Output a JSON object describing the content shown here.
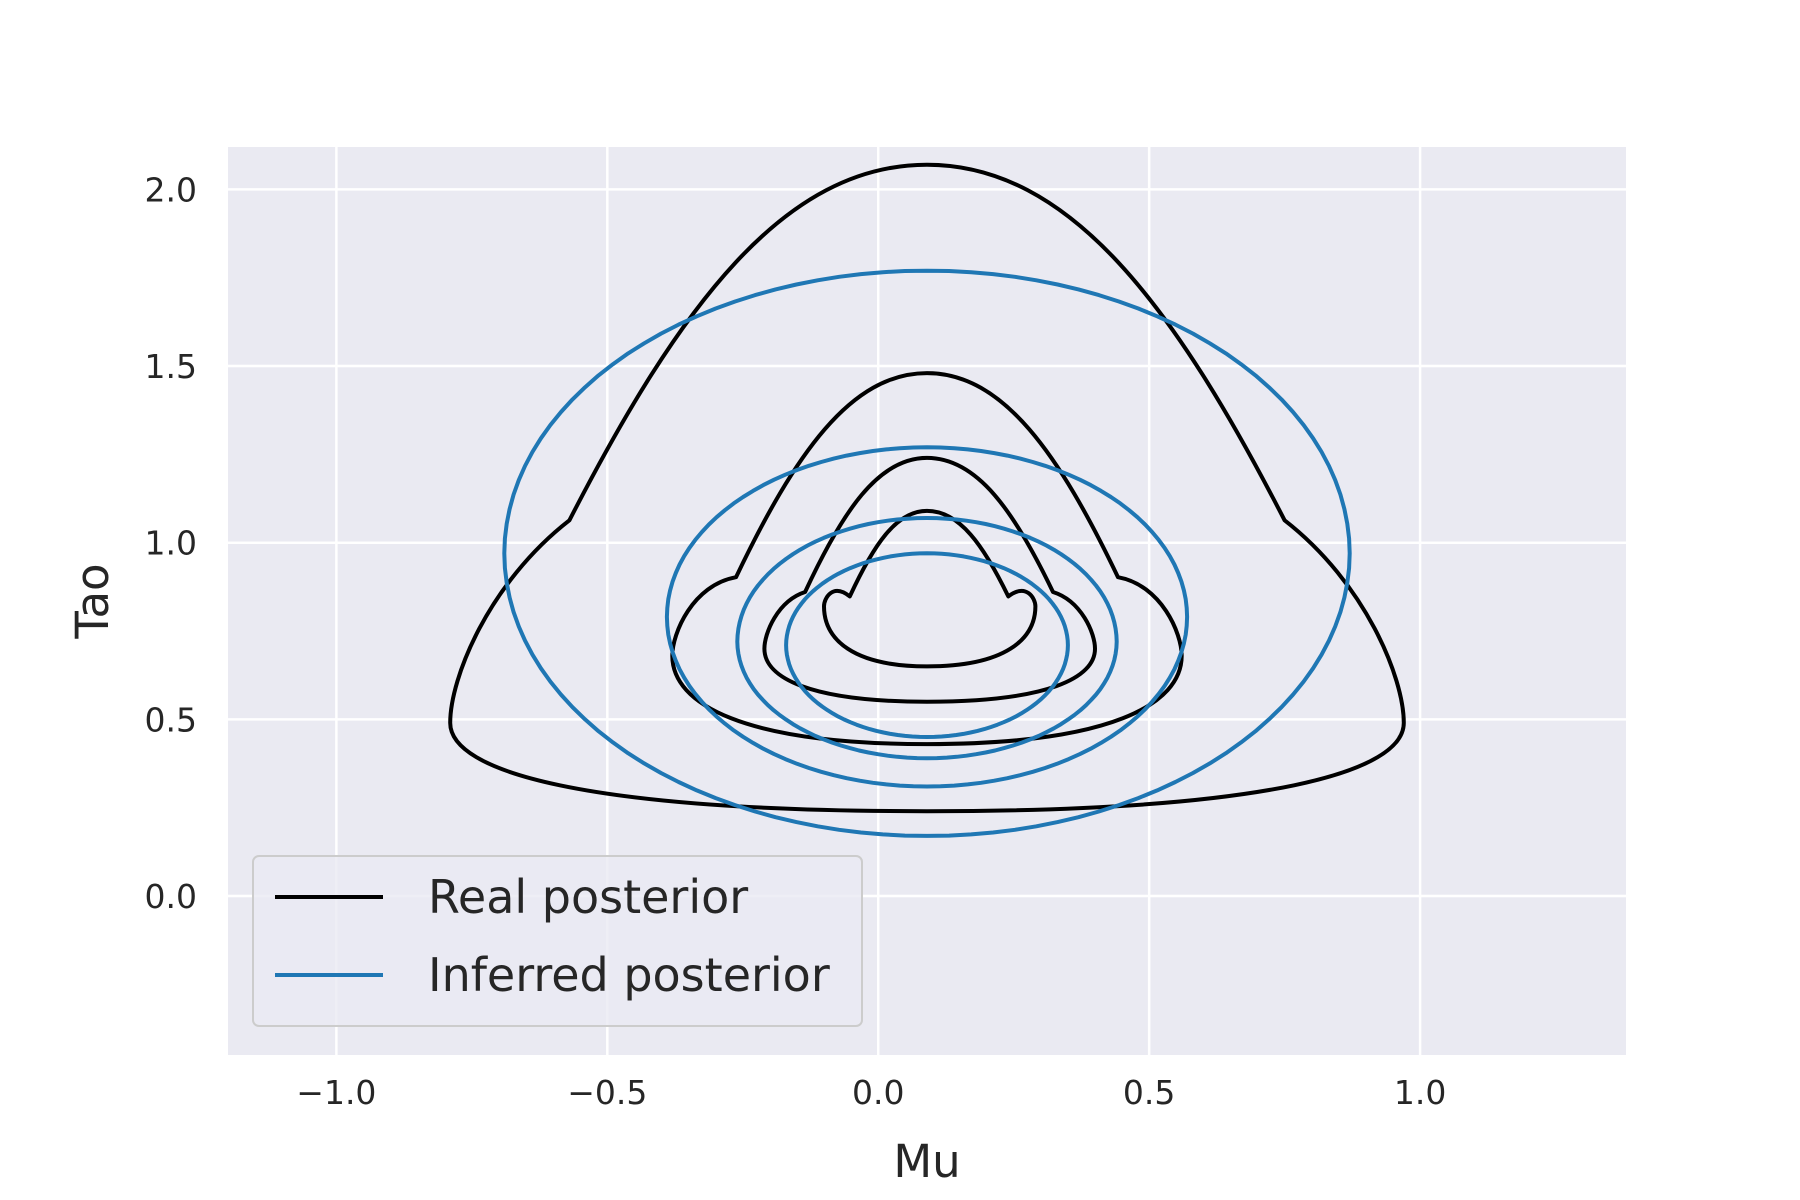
{
  "chart_data": {
    "type": "line",
    "subtype": "contour",
    "title": "",
    "xlabel": "Mu",
    "ylabel": "Tao",
    "xlim": [
      -1.2,
      1.38
    ],
    "ylim": [
      -0.45,
      2.12
    ],
    "xticks": [
      -1.0,
      -0.5,
      0.0,
      0.5,
      1.0
    ],
    "xtick_labels": [
      "−1.0",
      "−0.5",
      "0.0",
      "0.5",
      "1.0"
    ],
    "yticks": [
      0.0,
      0.5,
      1.0,
      1.5,
      2.0
    ],
    "ytick_labels": [
      "0.0",
      "0.5",
      "1.0",
      "1.5",
      "2.0"
    ],
    "grid": true,
    "background": "#eaeaf2",
    "grid_color": "#ffffff",
    "legend_position": "bottom-left",
    "series": [
      {
        "name": "Real posterior",
        "color": "#000000",
        "contours": [
          {
            "center_x": 0.09,
            "top": 2.07,
            "bottom": 0.24,
            "x_left": -0.79,
            "x_right": 0.97,
            "y_widest": 0.49
          },
          {
            "center_x": 0.09,
            "top": 1.48,
            "bottom": 0.43,
            "x_left": -0.38,
            "x_right": 0.56,
            "y_widest": 0.68
          },
          {
            "center_x": 0.09,
            "top": 1.24,
            "bottom": 0.55,
            "x_left": -0.21,
            "x_right": 0.4,
            "y_widest": 0.7
          },
          {
            "center_x": 0.09,
            "top": 1.09,
            "bottom": 0.65,
            "x_left": -0.1,
            "x_right": 0.29,
            "y_widest": 0.82
          }
        ]
      },
      {
        "name": "Inferred posterior",
        "color": "#1f77b4",
        "contours": [
          {
            "center_x": 0.09,
            "center_y": 0.97,
            "rx": 0.78,
            "ry_top": 0.8,
            "ry_bottom": 0.8,
            "widest_y": 0.68
          },
          {
            "center_x": 0.09,
            "center_y": 0.79,
            "rx": 0.48,
            "ry_top": 0.48,
            "ry_bottom": 0.48,
            "widest_y": 0.68
          },
          {
            "center_x": 0.09,
            "center_y": 0.72,
            "rx": 0.35,
            "ry_top": 0.35,
            "ry_bottom": 0.33,
            "widest_y": 0.68
          },
          {
            "center_x": 0.09,
            "center_y": 0.71,
            "rx": 0.26,
            "ry_top": 0.26,
            "ry_bottom": 0.26,
            "widest_y": 0.68
          }
        ]
      }
    ]
  }
}
